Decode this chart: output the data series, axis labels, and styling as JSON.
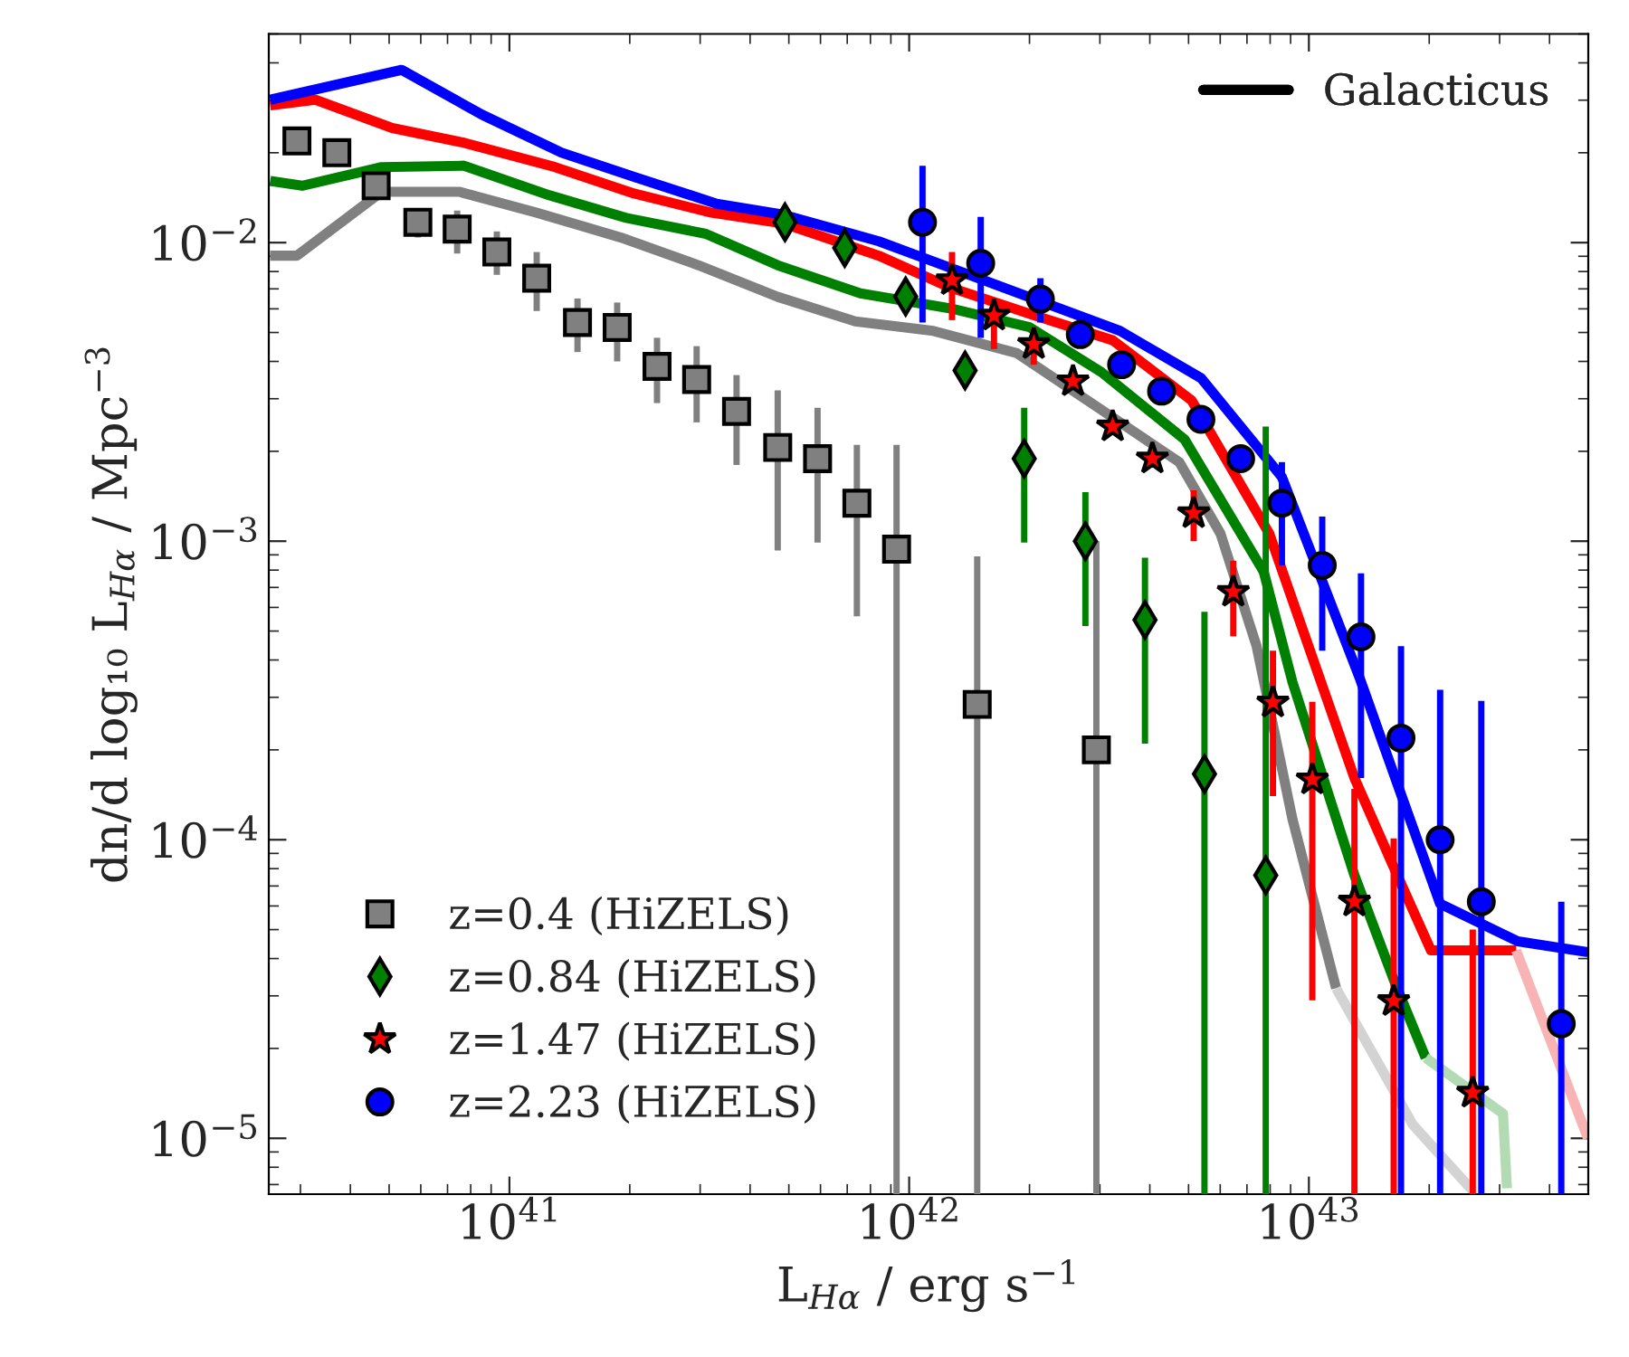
{
  "chart_data": {
    "type": "scatter",
    "xlabel": "L$_{Hα}$ / erg s$^{−1}$",
    "ylabel": "dn/d log₁₀ L$_{Hα}$ / Mpc$^{−3}$",
    "log": "xy",
    "grid": false,
    "legend": "bottom left",
    "annotations": [
      "Galacticus"
    ],
    "xlim": [
      2.5e+40,
      5e+43
    ],
    "ylim": [
      6.5e-06,
      0.05
    ],
    "xticks": [
      {
        "value": 1e+41,
        "label": "10$^{41}$"
      },
      {
        "value": 1e+42,
        "label": "10$^{42}$"
      },
      {
        "value": 1e+43,
        "label": "10$^{43}$"
      }
    ],
    "yticks": [
      {
        "value": 1e-05,
        "label": "10$^{−5}$"
      },
      {
        "value": 0.0001,
        "label": "10$^{−4}$"
      },
      {
        "value": 0.001,
        "label": "10$^{−3}$"
      },
      {
        "value": 0.01,
        "label": "10$^{−2}$"
      }
    ],
    "series": [
      {
        "type": "line",
        "color": "#808080",
        "x": [
          2.52e+40,
          2.94e+40,
          4.79e+40,
          7.48e+40,
          1.17e+41,
          1.9e+41,
          2.97e+41,
          4.69e+41,
          7.33e+41,
          1.15e+42,
          1.86e+42,
          3.03e+42,
          4.74e+42,
          6.01e+42,
          7.4e+42,
          9.1e+42,
          1.17e+43
        ],
        "values": [
          0.00904,
          0.00904,
          0.0148,
          0.0148,
          0.0126,
          0.0104,
          0.0084,
          0.00658,
          0.00545,
          0.00506,
          0.00426,
          0.00275,
          0.00184,
          0.00106,
          0.000445,
          0.000117,
          3.18e-05
        ]
      },
      {
        "type": "line",
        "color": "#d3d3d3",
        "x": [
          1.17e+43,
          1.82e+43,
          2.57e+43
        ],
        "values": [
          3.18e-05,
          1.11e-05,
          6.67e-06
        ]
      },
      {
        "type": "line",
        "color": "#008000",
        "x": [
          2.52e+40,
          3.03e+40,
          4.79e+40,
          7.7e+40,
          1.26e+41,
          1.96e+41,
          3.1e+41,
          4.69e+41,
          7.55e+41,
          1.27e+42,
          2e+42,
          3.03e+42,
          4.89e+42,
          7.71e+42,
          9.1e+42,
          1.3e+43,
          1.64e+43,
          1.96e+43
        ],
        "values": [
          0.0161,
          0.0155,
          0.0179,
          0.0181,
          0.0144,
          0.0121,
          0.0107,
          0.0084,
          0.00676,
          0.00602,
          0.00521,
          0.00368,
          0.00219,
          0.00079,
          0.000337,
          7.6e-05,
          3.33e-05,
          1.86e-05
        ]
      },
      {
        "type": "line",
        "color": "#b3dbb3",
        "x": [
          1.96e+43,
          3.06e+43,
          3.13e+43
        ],
        "values": [
          1.86e-05,
          1.21e-05,
          6.8e-06
        ]
      },
      {
        "type": "line",
        "color": "#ff0000",
        "x": [
          2.52e+40,
          3.27e+40,
          5.09e+40,
          7.7e+40,
          1.3e+41,
          2.05e+41,
          3.2e+41,
          4.84e+41,
          8.4e+41,
          1.27e+42,
          2.07e+42,
          3.23e+42,
          5.09e+42,
          7.96e+42,
          1.3e+43,
          1.61e+43,
          2.02e+43,
          3.3e+43
        ],
        "values": [
          0.0288,
          0.0301,
          0.0242,
          0.0216,
          0.0179,
          0.0146,
          0.0126,
          0.0116,
          0.00904,
          0.00706,
          0.00569,
          0.00471,
          0.00296,
          0.00106,
          0.000161,
          8.4e-05,
          4.26e-05,
          4.26e-05
        ]
      },
      {
        "type": "line",
        "color": "#f8b4b4",
        "x": [
          3.3e+43,
          4.99e+43
        ],
        "values": [
          4.26e-05,
          1e-05
        ]
      },
      {
        "type": "line",
        "color": "#0000ff",
        "x": [
          2.52e+40,
          5.37e+40,
          8.55e+40,
          1.35e+41,
          2.05e+41,
          3.3e+41,
          4.84e+41,
          8.4e+41,
          3.37e+42,
          5.37e+42,
          8.56e+42,
          1.34e+43,
          1.7e+43,
          2.13e+43,
          3.33e+43,
          4.99e+43
        ],
        "values": [
          0.0301,
          0.0379,
          0.0268,
          0.02,
          0.0166,
          0.0135,
          0.0124,
          0.0101,
          0.00506,
          0.00352,
          0.00164,
          0.000348,
          0.000142,
          6.1e-05,
          4.57e-05,
          4.2e-05
        ]
      },
      {
        "name": "z=0.4 (HiZELS)",
        "color": "#808080",
        "marker": "square",
        "x": [
          2.94e+40,
          3.7e+40,
          4.64e+40,
          5.9e+40,
          7.4e+40,
          9.3e+40,
          1.17e+41,
          1.48e+41,
          1.86e+41,
          2.34e+41,
          2.94e+41,
          3.7e+41,
          4.69e+41,
          5.9e+41,
          7.4e+41,
          9.3e+41,
          1.48e+42,
          2.94e+42
        ],
        "values": [
          0.0219,
          0.02,
          0.0155,
          0.0117,
          0.0111,
          0.0093,
          0.0076,
          0.0054,
          0.0052,
          0.00385,
          0.00348,
          0.00272,
          0.00206,
          0.00189,
          0.00134,
          0.00094,
          0.000284,
          0.0002
        ],
        "errors": [
          null,
          null,
          null,
          [
            0.0104,
            0.013
          ],
          [
            0.0092,
            0.0128
          ],
          [
            0.0078,
            0.0109
          ],
          [
            0.0059,
            0.0093
          ],
          [
            0.0043,
            0.0065
          ],
          [
            0.004,
            0.0063
          ],
          [
            0.0029,
            0.0048
          ],
          [
            0.0025,
            0.0045
          ],
          [
            0.0018,
            0.0036
          ],
          [
            0.00093,
            0.0032
          ],
          [
            0.00099,
            0.0028
          ],
          [
            0.00056,
            0.0021
          ],
          [
            6.5e-06,
            0.0021
          ],
          [
            6.5e-06,
            0.00089
          ],
          [
            6.5e-06,
            0.001
          ]
        ]
      },
      {
        "name": "z=0.84 (HiZELS)",
        "color": "#008000",
        "marker": "diamond",
        "x": [
          4.89e+41,
          6.9e+41,
          9.8e+41,
          1.38e+42,
          1.94e+42,
          2.76e+42,
          3.89e+42,
          5.48e+42,
          7.8e+42
        ],
        "values": [
          0.0117,
          0.0096,
          0.0066,
          0.00373,
          0.00189,
          0.001,
          0.000545,
          0.000166,
          7.6e-05
        ],
        "errors": [
          null,
          null,
          null,
          null,
          [
            0.00099,
            0.0028
          ],
          [
            0.00052,
            0.00146
          ],
          [
            0.00021,
            0.00088
          ],
          [
            6.5e-06,
            0.00058
          ],
          [
            6.5e-06,
            0.00242
          ]
        ]
      },
      {
        "name": "z=1.47 (HiZELS)",
        "color": "#ff0000",
        "marker": "star",
        "x": [
          1.28e+42,
          1.63e+42,
          2.05e+42,
          2.57e+42,
          3.23e+42,
          4.06e+42,
          5.15e+42,
          6.47e+42,
          8.13e+42,
          1.02e+43,
          1.3e+43,
          1.63e+43,
          2.57e+43
        ],
        "values": [
          0.00748,
          0.00569,
          0.00457,
          0.00343,
          0.00242,
          0.00189,
          0.00124,
          0.000676,
          0.000288,
          0.000159,
          6.2e-05,
          2.88e-05,
          1.42e-05
        ],
        "errors": [
          [
            0.0055,
            0.0093
          ],
          [
            0.0044,
            0.0062
          ],
          [
            0.0039,
            0.0052
          ],
          null,
          null,
          null,
          [
            0.001,
            0.00148
          ],
          [
            0.00048,
            0.00086
          ],
          [
            0.00014,
            0.00043
          ],
          [
            2.9e-05,
            0.00029
          ],
          [
            6.5e-06,
            0.000148
          ],
          [
            6.5e-06,
            0.000101
          ],
          [
            6.5e-06,
            5e-05
          ]
        ]
      },
      {
        "name": "z=2.23 (HiZELS)",
        "color": "#0000ff",
        "marker": "circle",
        "x": [
          1.08e+42,
          1.51e+42,
          2.13e+42,
          2.68e+42,
          3.4e+42,
          4.28e+42,
          5.37e+42,
          6.75e+42,
          8.56e+42,
          1.08e+43,
          1.35e+43,
          1.7e+43,
          2.13e+43,
          2.7e+43,
          4.28e+43
        ],
        "values": [
          0.0117,
          0.00853,
          0.00647,
          0.00492,
          0.0039,
          0.00318,
          0.00256,
          0.00189,
          0.00134,
          0.00083,
          0.000478,
          0.000219,
          0.0001,
          6.2e-05,
          2.42e-05
        ],
        "errors": [
          [
            0.0054,
            0.0181
          ],
          [
            0.0048,
            0.0122
          ],
          [
            0.0054,
            0.0076
          ],
          null,
          null,
          null,
          null,
          null,
          [
            0.00083,
            0.00184
          ],
          [
            0.00043,
            0.00121
          ],
          [
            0.000161,
            0.00078
          ],
          [
            6.5e-06,
            0.000445
          ],
          [
            6.5e-06,
            0.000318
          ],
          [
            6.5e-06,
            0.000292
          ],
          [
            6.5e-06,
            6.2e-05
          ]
        ]
      }
    ]
  }
}
